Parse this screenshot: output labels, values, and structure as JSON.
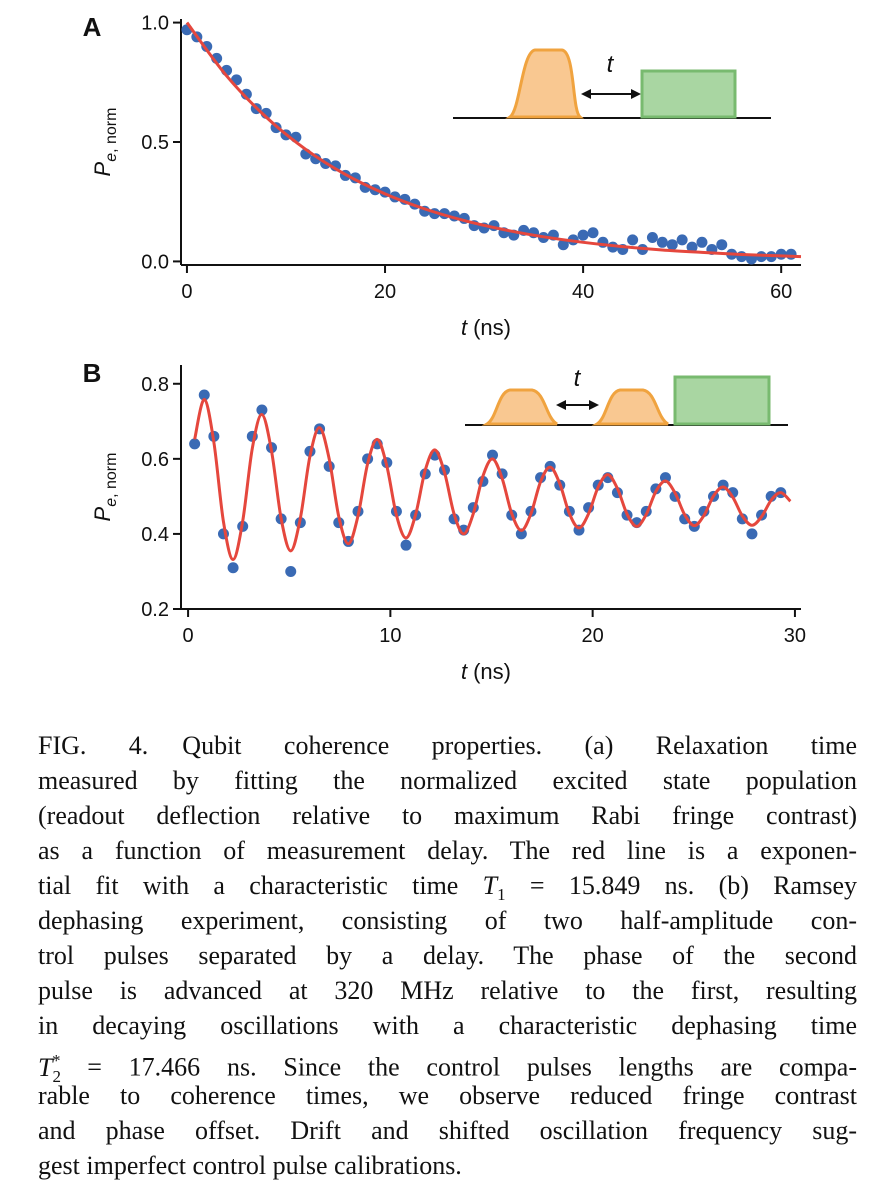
{
  "chart_data": [
    {
      "type": "scatter",
      "panel_label": "A",
      "ylabel": [
        "P",
        "e",
        ", norm"
      ],
      "xlabel": [
        "t",
        "(ns)"
      ],
      "inset_label": "t",
      "xlim": [
        -0.6,
        62
      ],
      "ylim": [
        -0.015,
        1.015
      ],
      "xticks": [
        0,
        20,
        40,
        60
      ],
      "yticks": [
        {
          "value": 0,
          "label": "0.0"
        },
        0.5,
        {
          "value": 1,
          "label": "1.0"
        }
      ],
      "series": [
        {
          "type": "scatter",
          "color": "#3a6ab4",
          "x": [
            0,
            1,
            2,
            3,
            4,
            5,
            6,
            7,
            8,
            9,
            10,
            11,
            12,
            13,
            14,
            15,
            16,
            17,
            18,
            19,
            20,
            21,
            22,
            23,
            24,
            25,
            26,
            27,
            28,
            29,
            30,
            31,
            32,
            33,
            34,
            35,
            36,
            37,
            38,
            39,
            40,
            41,
            42,
            43,
            44,
            45,
            46,
            47,
            48,
            49,
            50,
            51,
            52,
            53,
            54,
            55,
            56,
            57,
            58,
            59,
            60,
            61
          ],
          "values": [
            0.97,
            0.94,
            0.9,
            0.85,
            0.8,
            0.76,
            0.7,
            0.64,
            0.62,
            0.56,
            0.53,
            0.52,
            0.45,
            0.43,
            0.41,
            0.4,
            0.36,
            0.35,
            0.31,
            0.3,
            0.29,
            0.27,
            0.26,
            0.24,
            0.21,
            0.2,
            0.2,
            0.19,
            0.18,
            0.15,
            0.14,
            0.15,
            0.12,
            0.11,
            0.13,
            0.12,
            0.1,
            0.11,
            0.07,
            0.09,
            0.11,
            0.12,
            0.08,
            0.06,
            0.05,
            0.09,
            0.05,
            0.1,
            0.08,
            0.07,
            0.09,
            0.06,
            0.08,
            0.05,
            0.07,
            0.03,
            0.02,
            0.01,
            0.02,
            0.02,
            0.03,
            0.03
          ]
        },
        {
          "type": "line",
          "color": "#e5473d",
          "x": [
            0,
            4,
            8,
            12,
            16,
            20,
            24,
            28,
            32,
            36,
            40,
            44,
            48,
            52,
            56,
            60,
            62
          ],
          "values": [
            1.0,
            0.777,
            0.604,
            0.469,
            0.364,
            0.283,
            0.22,
            0.171,
            0.133,
            0.103,
            0.08,
            0.062,
            0.048,
            0.038,
            0.029,
            0.023,
            0.02
          ]
        }
      ]
    },
    {
      "type": "scatter",
      "panel_label": "B",
      "ylabel": [
        "P",
        "e",
        ", norm"
      ],
      "xlabel": [
        "t",
        "(ns)"
      ],
      "inset_label": "t",
      "xlim": [
        -0.35,
        30.3
      ],
      "ylim": [
        0.2,
        0.85
      ],
      "xticks": [
        0,
        10,
        20,
        30
      ],
      "yticks": [
        0.2,
        0.4,
        0.6,
        0.8
      ],
      "series": [
        {
          "type": "scatter",
          "color": "#3a6ab4",
          "x": [
            0.325,
            0.8,
            1.275,
            1.75,
            2.225,
            2.7,
            3.175,
            3.65,
            4.125,
            4.6,
            5.075,
            5.55,
            6.025,
            6.5,
            6.975,
            7.45,
            7.925,
            8.4,
            8.875,
            9.35,
            9.825,
            10.3,
            10.775,
            11.25,
            11.725,
            12.2,
            12.675,
            13.15,
            13.625,
            14.1,
            14.575,
            15.05,
            15.525,
            16,
            16.475,
            16.95,
            17.425,
            17.9,
            18.375,
            18.85,
            19.325,
            19.8,
            20.275,
            20.75,
            21.225,
            21.7,
            22.175,
            22.65,
            23.125,
            23.6,
            24.075,
            24.55,
            25.025,
            25.5,
            25.975,
            26.45,
            26.925,
            27.4,
            27.875,
            28.35,
            28.825,
            29.3
          ],
          "values": [
            0.64,
            0.77,
            0.66,
            0.4,
            0.31,
            0.42,
            0.66,
            0.73,
            0.63,
            0.44,
            0.3,
            0.43,
            0.62,
            0.68,
            0.58,
            0.43,
            0.38,
            0.46,
            0.6,
            0.64,
            0.59,
            0.46,
            0.37,
            0.45,
            0.56,
            0.61,
            0.57,
            0.44,
            0.41,
            0.47,
            0.54,
            0.61,
            0.56,
            0.45,
            0.4,
            0.46,
            0.55,
            0.58,
            0.53,
            0.46,
            0.41,
            0.47,
            0.53,
            0.55,
            0.51,
            0.45,
            0.43,
            0.46,
            0.52,
            0.55,
            0.5,
            0.44,
            0.42,
            0.46,
            0.5,
            0.53,
            0.51,
            0.44,
            0.4,
            0.45,
            0.5,
            0.51
          ]
        },
        {
          "type": "line",
          "color": "#e5473d",
          "x": [
            0.325,
            0.8,
            1.275,
            1.75,
            2.225,
            2.7,
            3.175,
            3.65,
            4.125,
            4.6,
            5.075,
            5.55,
            6.025,
            6.5,
            6.975,
            7.45,
            7.925,
            8.4,
            8.875,
            9.35,
            9.825,
            10.3,
            10.775,
            11.25,
            11.725,
            12.2,
            12.675,
            13.15,
            13.625,
            14.1,
            14.575,
            15.05,
            15.525,
            16,
            16.475,
            16.95,
            17.425,
            17.9,
            18.375,
            18.85,
            19.325,
            19.8,
            20.275,
            20.75,
            21.225,
            21.7,
            22.175,
            22.65,
            23.125,
            23.6,
            24.075,
            24.55,
            25.025,
            25.5,
            25.975,
            26.45,
            26.925,
            27.4,
            27.875,
            28.35,
            28.825,
            29.3,
            29.775
          ],
          "values": [
            0.652,
            0.758,
            0.644,
            0.432,
            0.332,
            0.434,
            0.628,
            0.718,
            0.621,
            0.441,
            0.355,
            0.442,
            0.607,
            0.683,
            0.6,
            0.446,
            0.374,
            0.448,
            0.587,
            0.652,
            0.581,
            0.45,
            0.389,
            0.452,
            0.57,
            0.624,
            0.564,
            0.453,
            0.4,
            0.454,
            0.554,
            0.6,
            0.548,
            0.454,
            0.409,
            0.454,
            0.539,
            0.578,
            0.534,
            0.454,
            0.416,
            0.454,
            0.525,
            0.558,
            0.521,
            0.453,
            0.42,
            0.452,
            0.513,
            0.541,
            0.509,
            0.451,
            0.422,
            0.449,
            0.501,
            0.525,
            0.498,
            0.448,
            0.423,
            0.446,
            0.49,
            0.51,
            0.487
          ]
        }
      ]
    }
  ],
  "caption": {
    "lines": [
      [
        "FIG. 4.",
        "Qubit coherence properties. (a) Relaxation time"
      ],
      "measured by fitting the normalized excited state population",
      "(readout deflection relative to maximum Rabi fringe contrast)",
      "as a function of measurement delay. The red line is a exponen-",
      [
        "tial fit with a characteristic time ",
        {
          "text": "T",
          "sub": "1"
        },
        " = 15.849 ns. (b) Ramsey"
      ],
      "dephasing experiment, consisting of two half-amplitude con-",
      "trol pulses separated by a delay. The phase of the second",
      "pulse is advanced at 320 MHz relative to the first, resulting",
      "in decaying oscillations with a characteristic dephasing time",
      [
        {
          "text": "T",
          "sub": "2",
          "sup": "*"
        },
        " = 17.466 ns. Since the control pulses lengths are compa-"
      ],
      "rable to coherence times, we observe reduced fringe contrast",
      "and phase offset. Drift and shifted oscillation frequency sug-",
      "gest imperfect control pulse calibrations."
    ]
  }
}
